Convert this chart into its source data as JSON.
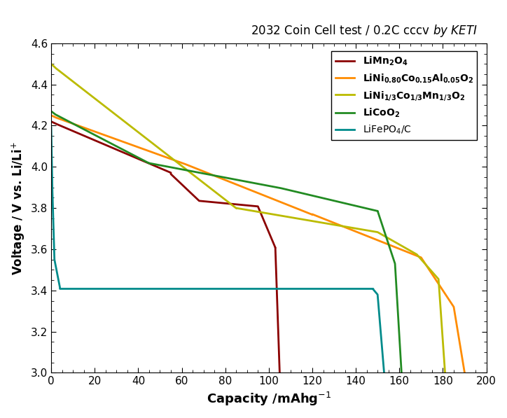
{
  "title_normal": "2032 Coin Cell test / 0.2C cccv ",
  "title_italic": "by KETI",
  "xlabel": "Capacity /mAhg$^{-1}$",
  "ylabel": "Voltage / V vs. Li/Li$^{+}$",
  "xlim": [
    0,
    200
  ],
  "ylim": [
    3.0,
    4.6
  ],
  "xticks": [
    0,
    20,
    40,
    60,
    80,
    100,
    120,
    140,
    160,
    180,
    200
  ],
  "yticks": [
    3.0,
    3.2,
    3.4,
    3.6,
    3.8,
    4.0,
    4.2,
    4.4,
    4.6
  ],
  "colors": {
    "LiMnO": "#8B0000",
    "NCA": "#FF8C00",
    "NCM": "#BBBB00",
    "LiCoO2": "#228B22",
    "LiFePO4": "#008B8B"
  },
  "background": "#ffffff",
  "linewidth": 2.0
}
